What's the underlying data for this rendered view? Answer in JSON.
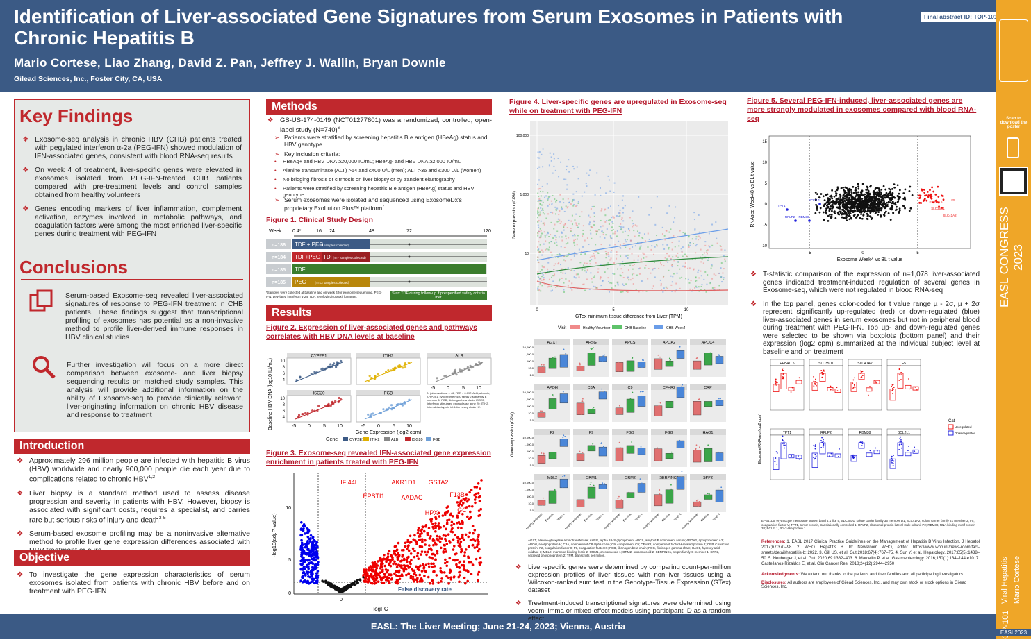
{
  "header": {
    "title": "Identification of Liver-associated Gene Signatures from Serum Exosomes in Patients with Chronic Hepatitis B",
    "authors": "Mario Cortese, Liao Zhang, David Z. Pan, Jeffrey J. Wallin, Bryan Downie",
    "affiliation": "Gilead Sciences, Inc., Foster City, CA, USA",
    "abstract_id": "Final abstract ID: TOP-101"
  },
  "sidebar": {
    "scan": "Scan to download the poster",
    "congress": "EASL CONGRESS 2023",
    "topic": "Viral Hepatitis",
    "author": "Mario Cortese",
    "id": "TOP-101",
    "tag": "EASL2023"
  },
  "key_findings": {
    "title": "Key Findings",
    "items": [
      "Exosome-seq analysis in chronic HBV (CHB) patients treated with pegylated interferon α-2a (PEG-IFN) showed modulation of IFN-associated genes, consistent with blood RNA-seq results",
      "On week 4 of treatment, liver-specific genes were elevated in exosomes isolated from PEG-IFN-treated CHB patients compared with pre-treatment levels and control samples obtained from healthy volunteers",
      "Genes encoding markers of liver inflammation, complement activation, enzymes involved in metabolic pathways, and coagulation factors were among the most enriched liver-specific genes during treatment with PEG-IFN"
    ]
  },
  "conclusions": {
    "title": "Conclusions",
    "items": [
      "Serum-based Exosome-seq revealed liver-associated signatures of response to PEG-IFN treatment in CHB patients. These findings suggest that transcriptional profiling of exosomes has potential as a non-invasive method to profile liver-derived immune responses in HBV clinical studies",
      "Further investigation will focus on a more direct comparison between exosome- and liver biopsy sequencing results on matched study samples. This analysis will provide additional information on the ability of Exosome-seq to provide clinically relevant, liver-originating information on chronic HBV disease and response to treatment"
    ]
  },
  "introduction": {
    "title": "Introduction",
    "items": [
      {
        "text": "Approximately 296 million people are infected with hepatitis B virus (HBV) worldwide and nearly 900,000 people die each year due to complications related to chronic HBV",
        "sup": "1,2"
      },
      {
        "text": "Liver biopsy is a standard method used to assess disease progression and severity in patients with HBV. However, biopsy is associated with significant costs, requires a specialist, and carries rare but serious risks of injury and death",
        "sup": "3-5"
      },
      {
        "text": "Serum-based exosome profiling may be a noninvasive alternative method to profile liver gene expression differences associated with HBV treatment or cure"
      }
    ]
  },
  "objective": {
    "title": "Objective",
    "items": [
      "To investigate the gene expression characteristics of serum exosomes isolated from patients with chronic HBV before and on treatment with PEG-IFN"
    ]
  },
  "methods": {
    "title": "Methods",
    "main": [
      {
        "text": "GS-US-174-0149 (NCT01277601) was a randomized, controlled, open-label study (N=740)",
        "sup": "6"
      }
    ],
    "sub1": [
      "Patients were stratified by screening hepatitis B e antigen (HBeAg) status and HBV genotype",
      "Key inclusion criteria:"
    ],
    "criteria": [
      "HBeAg+ and HBV DNA ≥20,000 IU/mL; HBeAg- and HBV DNA ≥2,000 IU/mL",
      "Alanine transaminase (ALT) >54 and ≤400 U/L (men); ALT >36 and ≤300 U/L (women)",
      "No bridging fibrosis or cirrhosis on liver biopsy or by transient elastography",
      "Patients were stratified by screening hepatitis B e antigen (HBeAg) status and HBV genotype"
    ],
    "sub2": [
      {
        "text": "Serum exosomes were isolated and sequenced using ExosomeDx's proprietary ExoLution Plus™ platform",
        "sup": "7"
      }
    ]
  },
  "figure1": {
    "title": "Figure 1. Clinical Study Design",
    "week_label": "Week",
    "weeks": [
      "0",
      "4*",
      "16",
      "24",
      "48",
      "72",
      "120"
    ],
    "rows": [
      {
        "n": "n=186",
        "arm": "TDF + PEG",
        "note": "(n=20 samples collected)"
      },
      {
        "n": "n=184",
        "arm": "TDF+PEG",
        "arm2": "TDF",
        "note": "(n=7 samples collected)"
      },
      {
        "n": "n=185",
        "arm": "TDF"
      },
      {
        "n": "n=185",
        "arm": "PEG",
        "note": "(n=13 samples collected)"
      }
    ],
    "footnote": "*Samples were collected at baseline and on week 4 for exosome sequencing. PEG-IFN, pegylated interferon α-2a; TDF, tenofovir disoproxil fumarate.",
    "followup": "Start TDF during follow-up if prespecified safety criteria met"
  },
  "results": {
    "title": "Results"
  },
  "figure2": {
    "title": "Figure 2. Expression of liver-associated genes and pathways correlates with HBV DNA levels at baseline",
    "panels": [
      "CYP2E1",
      "ITIH2",
      "ALB",
      "ISG20",
      "FGB"
    ],
    "ylabel": "Baseline HBV DNA (log10 IU/mL)",
    "xlabel": "Gene Expression (log2 cpm)",
    "yticks": [
      "10",
      "8",
      "6",
      "4"
    ],
    "xticks": [
      "-5",
      "0",
      "5",
      "10"
    ],
    "legend_title": "Gene",
    "note": "N (observations) = 46; FDR < 0.097. ALB, albumin; CYP2E1, cytochrome P450 family 2 subfamily E member 1; FGB, fibrinogen beta chain; ISG20, interferon stimulated exonuclease gene 20; ITIH2, inter-alpha-trypsin inhibitor heavy chain H2."
  },
  "figure3": {
    "title": "Figure 3. Exosome-seq revealed IFN-associated gene expression enrichment in patients treated with PEG-IFN",
    "ylabel": "-log10(adj.P-value)",
    "xlabel": "logFC",
    "yticks": [
      "10",
      "5",
      "0"
    ],
    "xticks": [
      "0"
    ],
    "fdr": "False discovery rate",
    "genes": [
      "IFI44L",
      "EPSTI1",
      "AKR1D1",
      "AADAC",
      "GSTA2",
      "F13B",
      "HPX",
      "GC"
    ]
  },
  "figure4": {
    "title": "Figure 4. Liver-specific genes are upregulated in Exosome-seq while on treatment with PEG-IFN",
    "ylabel": "Gene expression (CPM)",
    "yticks": [
      "100,000",
      "1,000",
      "10"
    ],
    "xlabel": "GTex minimum tissue difference from Liver (TPM)",
    "xticks": [
      "0",
      "5",
      "10"
    ],
    "legend_title": "Visit",
    "legend": [
      "Healthy Volunteer",
      "CHB Baseline",
      "CHB Week4"
    ],
    "panels": [
      "AGXT",
      "AHSG",
      "APCS",
      "APOA2",
      "APOC4",
      "APOH",
      "C8A",
      "C9",
      "CFHR2",
      "CRP",
      "F2",
      "F9",
      "FGB",
      "FGG",
      "HAO1",
      "MBL2",
      "ORM1",
      "ORM2",
      "SERPINC1",
      "SPP2"
    ],
    "box_ylabel": "Gene expression (CPM)",
    "box_yticks": [
      "10,000.0",
      "1,000.0",
      "100.0",
      "10.0",
      "1.0"
    ],
    "box_xticks": [
      "Healthy Volunteer",
      "Baseline",
      "Week 4"
    ],
    "footnote": "AGXT, alanine-glyoxylate aminotransferase; AHSG, alpha 2-HS glycoprotein; APCS, amyloid P component serum; APOA2, apolipoprotein A2; APOH, apolipoprotein H; C8A, complement C8 alpha chain; C9, complement C9; CFHR2, complement factor H-related protein 2; CRP, C-reactive protein; F2, coagulation factor II; F9, coagulation factor IX; FGB, fibrinogen beta chain; FGG, fibrinogen gamma chain; HAO1, hydroxy acid oxidase 1; MBL2, mannose-binding lectin 2; ORM1, orosomucoid 1; ORM2, orosomucoid 2; SERPINC1, serpin family C member 1; SPP2, secreted phosphoprotein 2; TPM, transcripts per million.",
    "items": [
      "Liver-specific genes were determined by comparing count-per-million expression profiles of liver tissues with non-liver tissues using a Wilcoxon-ranked sum test in the Genotype-Tissue Expression (GTex) dataset",
      "Treatment-induced transcriptional signatures were determined using voom-limma or mixed-effect models using participant ID as a random effect"
    ]
  },
  "figure5": {
    "title": "Figure 5. Several PEG-IFN-induced, liver-associated genes are more strongly modulated in exosomes compared with blood RNA-seq",
    "ylabel": "RNAseq Week48 vs BL t value",
    "xlabel": "Exosome Week4 vs BL t value",
    "yticks": [
      "15",
      "10",
      "5",
      "0",
      "-5",
      "-10"
    ],
    "xticks": [
      "-5",
      "0",
      "5"
    ],
    "down_labels": [
      "TPT1",
      "RPLP2",
      "RBM38",
      "BCL2L1"
    ],
    "up_labels": [
      "EPB41L5",
      "F5",
      "SLC35D1",
      "SLC41A2"
    ],
    "items": [
      "T-statistic comparison of the expression of n=1,078 liver-associated genes indicated treatment-induced regulation of several genes in Exosome-seq, which were not regulated in blood RNA-seq",
      "In the top panel, genes color-coded for t value range µ - 2σ, µ + 2σ represent significantly up-regulated (red) or down-regulated (blue) liver-associated genes in serum exosomes but not in peripheral blood during treatment with PEG-IFN. Top up- and down-regulated genes were selected to be shown via boxplots (bottom panel) and their expression (log2 cpm) summarized at the individual subject level at baseline and on treatment"
    ],
    "panels": [
      "EPB41L5",
      "SLC35D1",
      "SLC41A2",
      "F5",
      "TPT1",
      "RPLP2",
      "RBM38",
      "BCL2L1"
    ],
    "box_ylabel": "Exosome/RNAseq (log2 cpm)",
    "legend_title": "Cat",
    "legend": [
      "Upregulated",
      "Downregulated"
    ],
    "footnote": "EPB41L5, erythrocyte membrane protein band 4.1 like 5; SLC35D1, solute carrier family 35 member D1; SLC41A2, solute carrier family 41 member 2; F5, coagulation factor V; TPT1, tumor protein, translationally controlled 1; RPLP2, ribosomal protein lateral stalk subunit P2; RBM38, RNA binding motif protein 38; BCL2L1, Bcl-2-like protein 1."
  },
  "references": {
    "label": "References:",
    "text": "1. EASL 2017 Clinical Practice Guidelines on the Management of Hepatitis B Virus Infection. J Hepatol 2017;67:370–98. 2. WHO. Hepatitis B. In: Newsroom WHO, editor. https://www.who.int/news-room/fact-sheets/detail/hepatitis-b; 2022. 3. Gill US, et al. Gut 2018;67(4):767–75. 4. Sun Y, et al. Hepatology. 2017;65(5):1438–50. 5. Neuberger J, et al. Gut. 2020;69:1382–403. 6. Marcellin P, et al. Gastroenterology. 2016;150(1):134–144.e10. 7. Castellanos-Rizaldos E, et al. Clin Cancer Res. 2018;24(12):2944–2950",
    "ack_label": "Acknowledgments:",
    "ack": "We extend our thanks to the patients and their families and all participating investigators",
    "disc_label": "Disclosures:",
    "disc": "All authors are employees of Gilead Sciences, Inc., and may own stock or stock options in Gilead Sciences, Inc."
  },
  "footer": "EASL: The Liver Meeting; June 21-24, 2023; Vienna, Austria"
}
